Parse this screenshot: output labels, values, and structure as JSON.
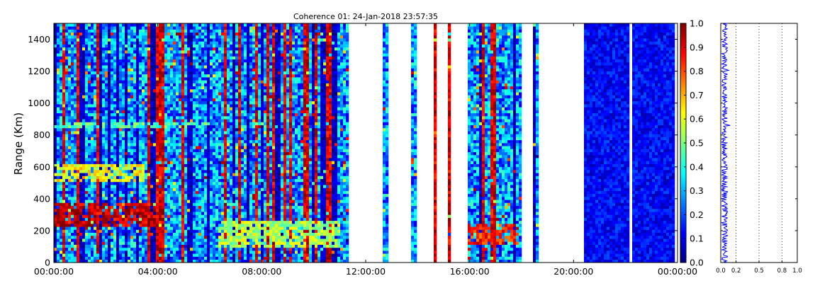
{
  "chart_data": [
    {
      "type": "heatmap",
      "title": "Coherence 01: 24-Jan-2018 23:57:35",
      "xlabel": "",
      "ylabel": "Range (Km)",
      "xticks": [
        "00:00:00",
        "04:00:00",
        "08:00:00",
        "12:00:00",
        "16:00:00",
        "20:00:00",
        "00:00:00"
      ],
      "yticks": [
        "0",
        "200",
        "400",
        "600",
        "800",
        "1000",
        "1200",
        "1400"
      ],
      "xlim_hours": [
        0,
        24
      ],
      "ylim": [
        0,
        1500
      ],
      "colorbar": {
        "ticks": [
          "0.0",
          "0.1",
          "0.2",
          "0.3",
          "0.4",
          "0.5",
          "0.6",
          "0.7",
          "0.8",
          "0.9",
          "1.0"
        ],
        "range": [
          0,
          1
        ],
        "colormap": "jet"
      },
      "gaps_hours": [
        [
          11.3,
          12.7
        ],
        [
          12.85,
          13.75
        ],
        [
          13.95,
          14.6
        ],
        [
          14.75,
          15.15
        ],
        [
          15.25,
          15.9
        ],
        [
          18.0,
          18.4
        ],
        [
          18.65,
          20.45
        ],
        [
          22.1,
          22.25
        ],
        [
          23.9,
          24.0
        ]
      ],
      "layers": [
        {
          "t0": 0.0,
          "t1": 4.0,
          "r0": 230,
          "r1": 380,
          "value": 0.92
        },
        {
          "t0": 0.0,
          "t1": 3.5,
          "r0": 500,
          "r1": 620,
          "value": 0.62
        },
        {
          "t0": 0.0,
          "t1": 6.0,
          "r0": 850,
          "r1": 880,
          "value": 0.45
        },
        {
          "t0": 6.3,
          "t1": 11.0,
          "r0": 100,
          "r1": 260,
          "value": 0.55
        },
        {
          "t0": 15.9,
          "t1": 17.9,
          "r0": 110,
          "r1": 250,
          "value": 0.85
        }
      ],
      "noise_region_hours": [
        20.45,
        23.9
      ],
      "noise_value": 0.12,
      "grid": false
    },
    {
      "type": "line",
      "xticks": [
        "0.0",
        "0.2",
        "0.5",
        "0.8",
        "1.0"
      ],
      "xlim": [
        0,
        1
      ],
      "ylim": [
        0,
        1500
      ],
      "grid_x": [
        0.2,
        0.5,
        0.8
      ],
      "mean_value": 0.05,
      "color": "#0000ff"
    }
  ],
  "colors": {
    "background": "#ffffff",
    "line": "#0000ff",
    "axis": "#000000"
  }
}
